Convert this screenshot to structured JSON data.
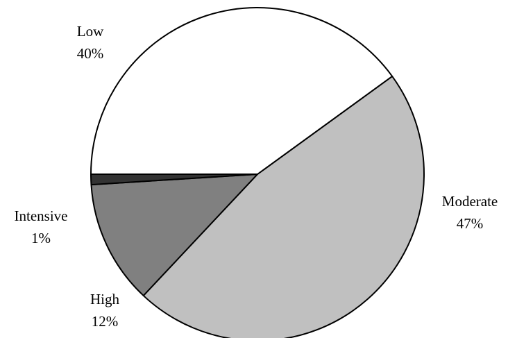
{
  "chart_data": {
    "type": "pie",
    "title": "",
    "slices": [
      {
        "label": "Moderate",
        "value": 47,
        "value_label": "47%",
        "color": "#c0c0c0"
      },
      {
        "label": "High",
        "value": 12,
        "value_label": "12%",
        "color": "#808080"
      },
      {
        "label": "Intensive",
        "value": 1,
        "value_label": "1%",
        "color": "#333333"
      },
      {
        "label": "Low",
        "value": 40,
        "value_label": "40%",
        "color": "#ffffff"
      }
    ],
    "legend": "none",
    "label_placement": "outside"
  }
}
